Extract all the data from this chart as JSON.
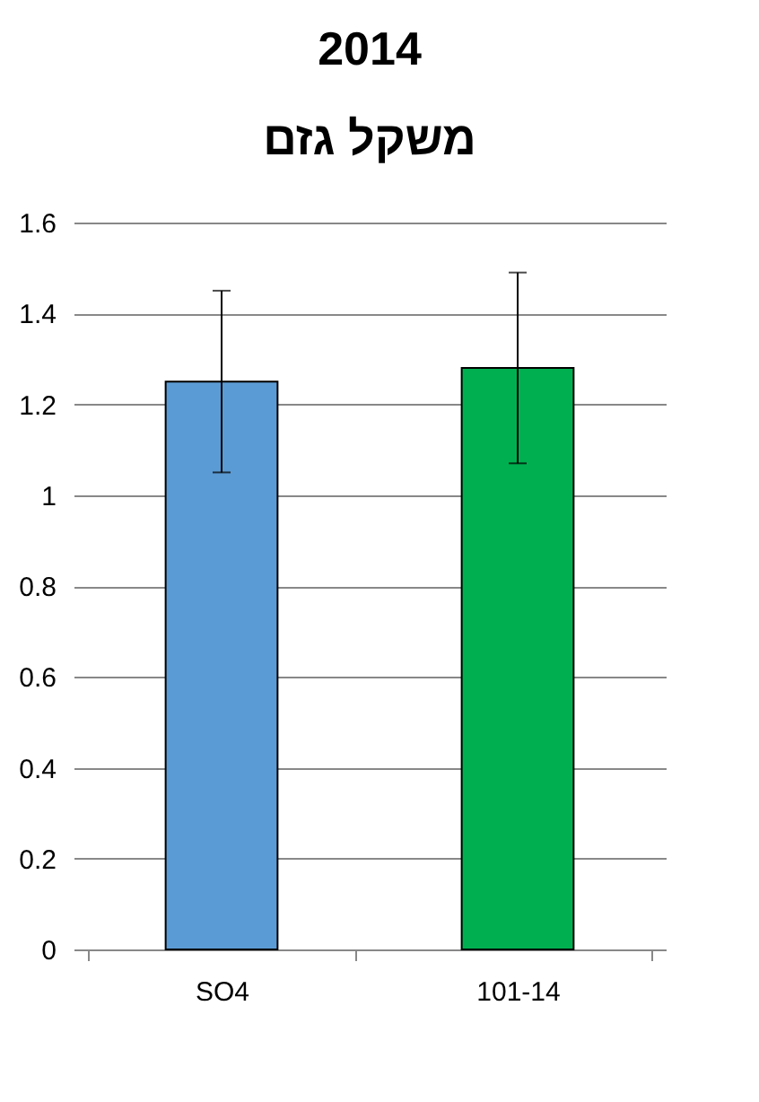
{
  "chart_data": {
    "type": "bar",
    "title": "2014",
    "subtitle": "משקל גזם",
    "categories": [
      "SO4",
      "101-14"
    ],
    "values": [
      1.25,
      1.28
    ],
    "colors": [
      "#5b9bd5",
      "#00b050"
    ],
    "errors": [
      [
        1.05,
        1.45
      ],
      [
        1.07,
        1.49
      ]
    ],
    "ylim": [
      0,
      1.6
    ],
    "yticks": [
      0,
      0.2,
      0.4,
      0.6,
      0.8,
      1,
      1.2,
      1.4,
      1.6
    ],
    "grid": "y"
  }
}
